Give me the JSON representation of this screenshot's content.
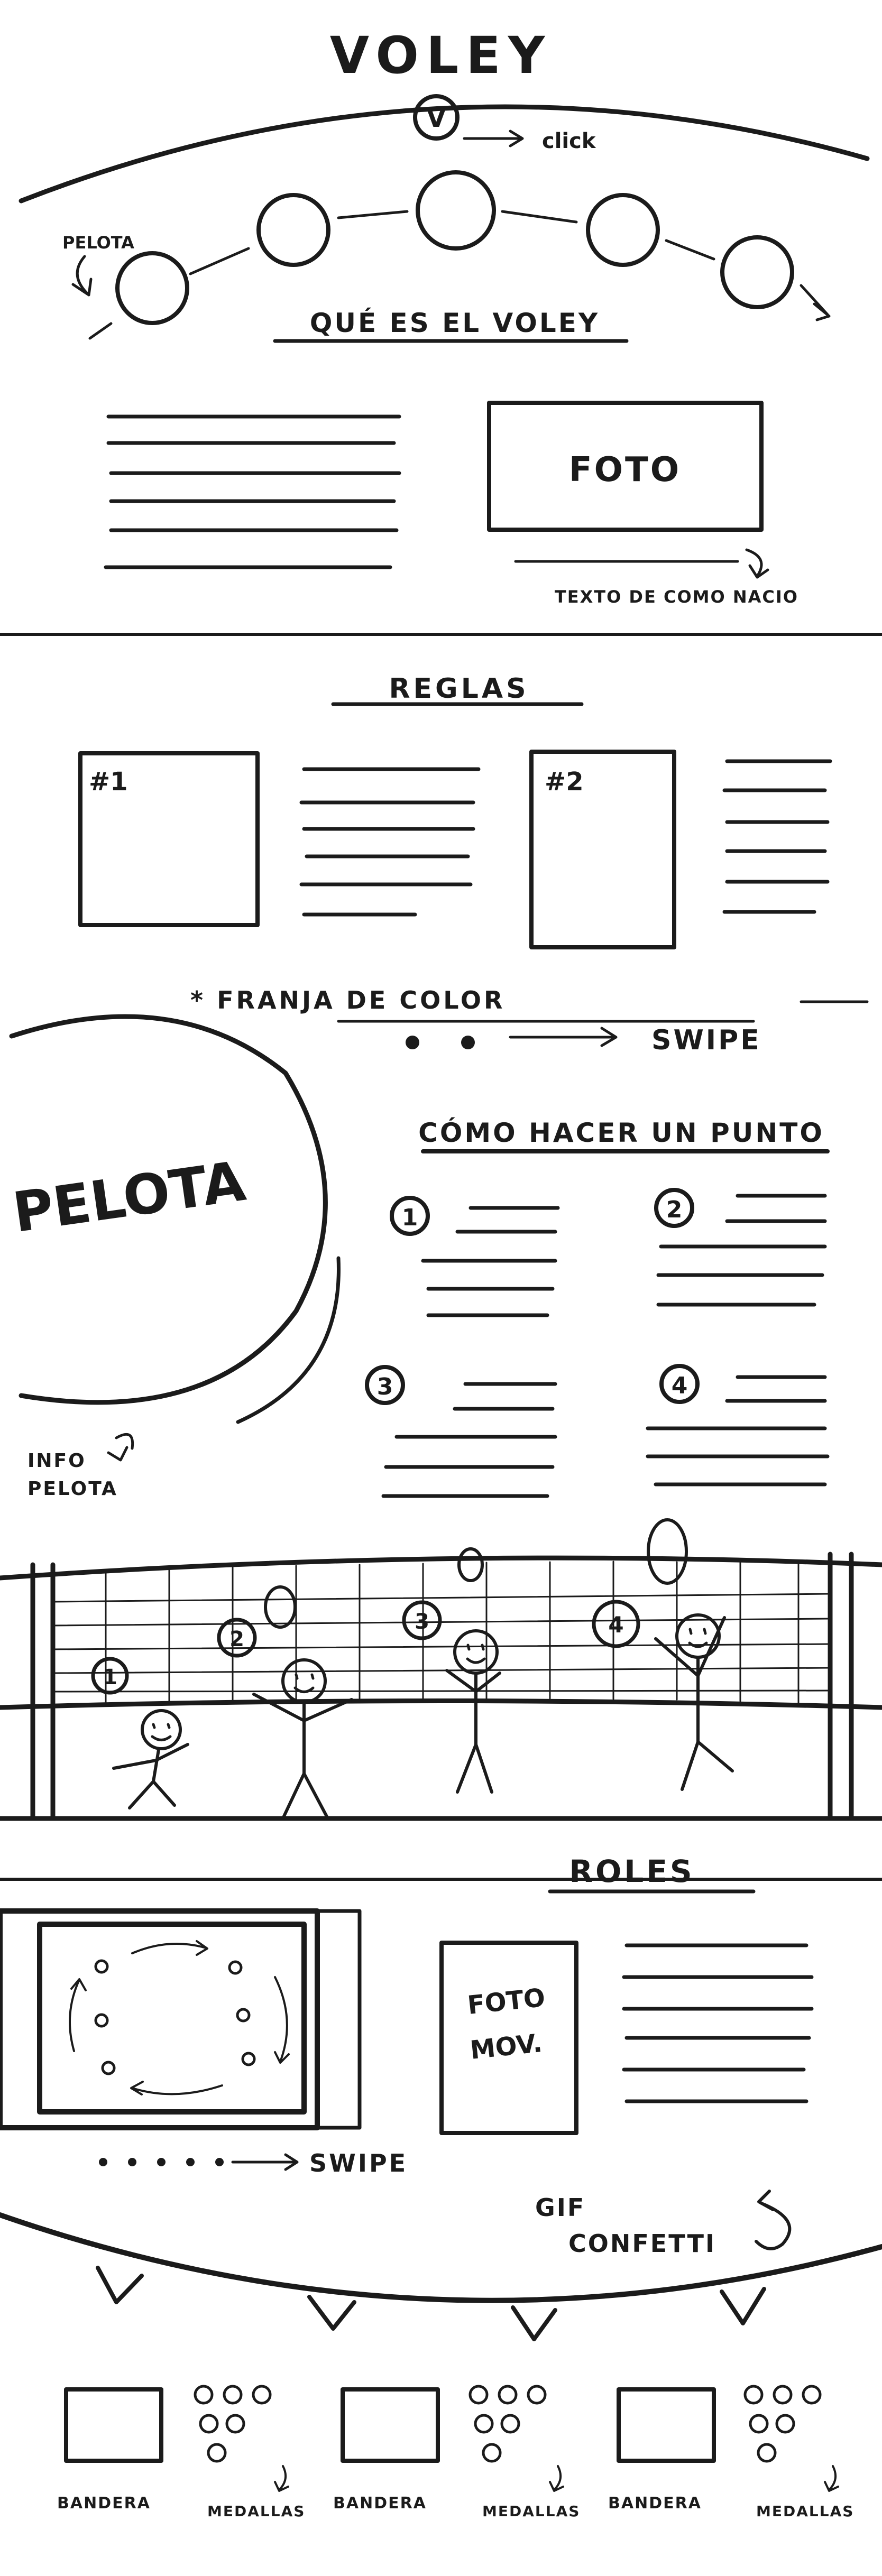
{
  "header": {
    "title": "VOLEY",
    "button_letter": "V",
    "click_note": "click",
    "ball_note": "PELOTA"
  },
  "about": {
    "heading": "QUÉ ES EL VOLEY",
    "photo_label": "FOTO",
    "photo_note": "TEXTO DE COMO NACIO"
  },
  "rules": {
    "heading": "REGLAS",
    "cards": [
      {
        "label": "#1"
      },
      {
        "label": "#2"
      }
    ]
  },
  "divider": {
    "stripe_note": "* FRANJA DE COLOR",
    "swipe_note": "SWIPE"
  },
  "ball_info": {
    "ball_label": "PELOTA",
    "note_line1": "INFO",
    "note_line2": "PELOTA"
  },
  "points": {
    "heading": "CÓMO HACER UN PUNTO",
    "steps": [
      {
        "number": "1"
      },
      {
        "number": "2"
      },
      {
        "number": "3"
      },
      {
        "number": "4"
      }
    ]
  },
  "court": {
    "player_numbers": [
      "1",
      "2",
      "3",
      "4"
    ]
  },
  "roles": {
    "heading": "ROLES",
    "photo_line1": "FOTO",
    "photo_line2": "MOV.",
    "swipe_note": "SWIPE"
  },
  "confetti": {
    "line1": "GIF",
    "line2": "CONFETTI"
  },
  "medals": {
    "items": [
      {
        "flag_label": "BANDERA",
        "medals_label": "MEDALLAS"
      },
      {
        "flag_label": "BANDERA",
        "medals_label": "MEDALLAS"
      },
      {
        "flag_label": "BANDERA",
        "medals_label": "MEDALLAS"
      }
    ]
  }
}
